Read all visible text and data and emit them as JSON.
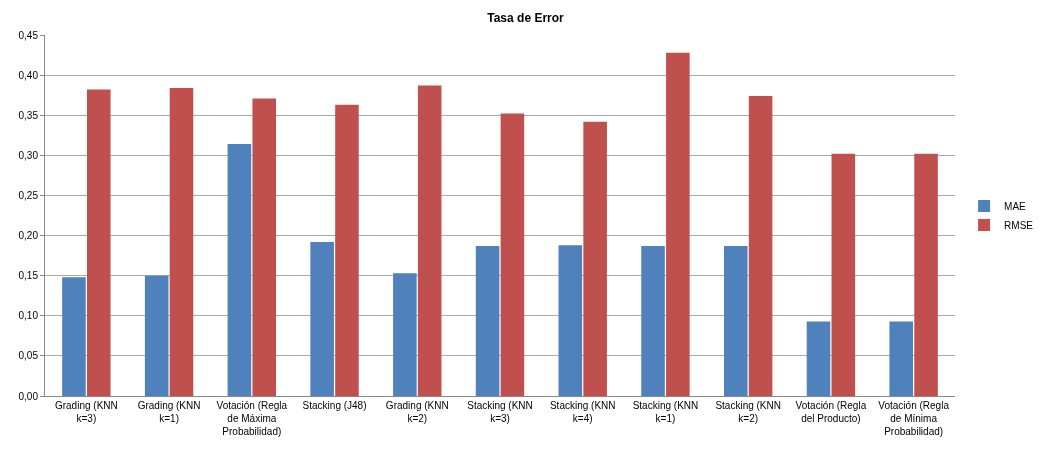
{
  "chart_data": {
    "type": "bar",
    "title": "Tasa de Error",
    "categories": [
      "Grading (KNN\nk=3)",
      "Grading (KNN\nk=1)",
      "Votación (Regla\nde Máxima\nProbabilidad)",
      "Stacking (J48)",
      "Grading (KNN\nk=2)",
      "Stacking (KNN\nk=3)",
      "Stacking (KNN\nk=4)",
      "Stacking (KNN\nk=1)",
      "Stacking (KNN\nk=2)",
      "Votación (Regla\ndel Producto)",
      "Votación (Regla\nde Mínima\nProbabilidad)"
    ],
    "series": [
      {
        "name": "MAE",
        "color": "#4f81bd",
        "values": [
          0.148,
          0.15,
          0.314,
          0.192,
          0.153,
          0.187,
          0.188,
          0.187,
          0.187,
          0.093,
          0.093
        ]
      },
      {
        "name": "RMSE",
        "color": "#c0504d",
        "values": [
          0.382,
          0.384,
          0.371,
          0.363,
          0.387,
          0.352,
          0.342,
          0.428,
          0.374,
          0.302,
          0.302
        ]
      }
    ],
    "ylim": [
      0,
      0.45
    ],
    "yticks": [
      {
        "value": 0,
        "label": "0,00"
      },
      {
        "value": 0.05,
        "label": "0,05"
      },
      {
        "value": 0.1,
        "label": "0,10"
      },
      {
        "value": 0.15,
        "label": "0,15"
      },
      {
        "value": 0.2,
        "label": "0,20"
      },
      {
        "value": 0.25,
        "label": "0,25"
      },
      {
        "value": 0.3,
        "label": "0,30"
      },
      {
        "value": 0.35,
        "label": "0,35"
      },
      {
        "value": 0.4,
        "label": "0,40"
      },
      {
        "value": 0.45,
        "label": "0,45"
      }
    ],
    "grid": "y",
    "legend": "right"
  }
}
